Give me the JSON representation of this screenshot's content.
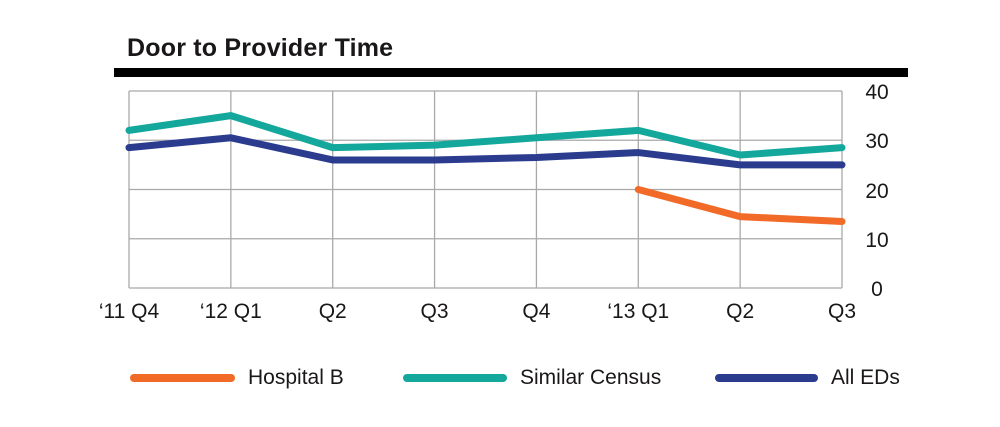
{
  "title": "Door to Provider Time",
  "colors": {
    "hospital_b": "#F26A27",
    "similar_census": "#14A79B",
    "all_eds": "#2B3C8F",
    "grid": "#A9A9A9",
    "text": "#1a1718",
    "title_rule": "#000000"
  },
  "chart_data": {
    "type": "line",
    "title": "Door to Provider Time",
    "categories": [
      "‘11 Q4",
      "‘12 Q1",
      "Q2",
      "Q3",
      "Q4",
      "‘13 Q1",
      "Q2",
      "Q3"
    ],
    "series": [
      {
        "name": "Hospital B",
        "color": "#F26A27",
        "values": [
          null,
          null,
          null,
          null,
          null,
          20,
          14.5,
          13.5
        ]
      },
      {
        "name": "Similar Census",
        "color": "#14A79B",
        "values": [
          32,
          35,
          28.5,
          29,
          30.5,
          32,
          27,
          28.5
        ]
      },
      {
        "name": "All EDs",
        "color": "#2B3C8F",
        "values": [
          28.5,
          30.5,
          26,
          26,
          26.5,
          27.5,
          25,
          25
        ]
      }
    ],
    "xlabel": "",
    "ylabel": "",
    "ylim": [
      0,
      40
    ],
    "yticks": [
      0,
      10,
      20,
      30,
      40
    ],
    "grid": true,
    "y_axis_side": "right",
    "legend_position": "bottom"
  },
  "legend": {
    "items": [
      {
        "label": "Hospital B"
      },
      {
        "label": "Similar Census"
      },
      {
        "label": "All EDs"
      }
    ]
  }
}
